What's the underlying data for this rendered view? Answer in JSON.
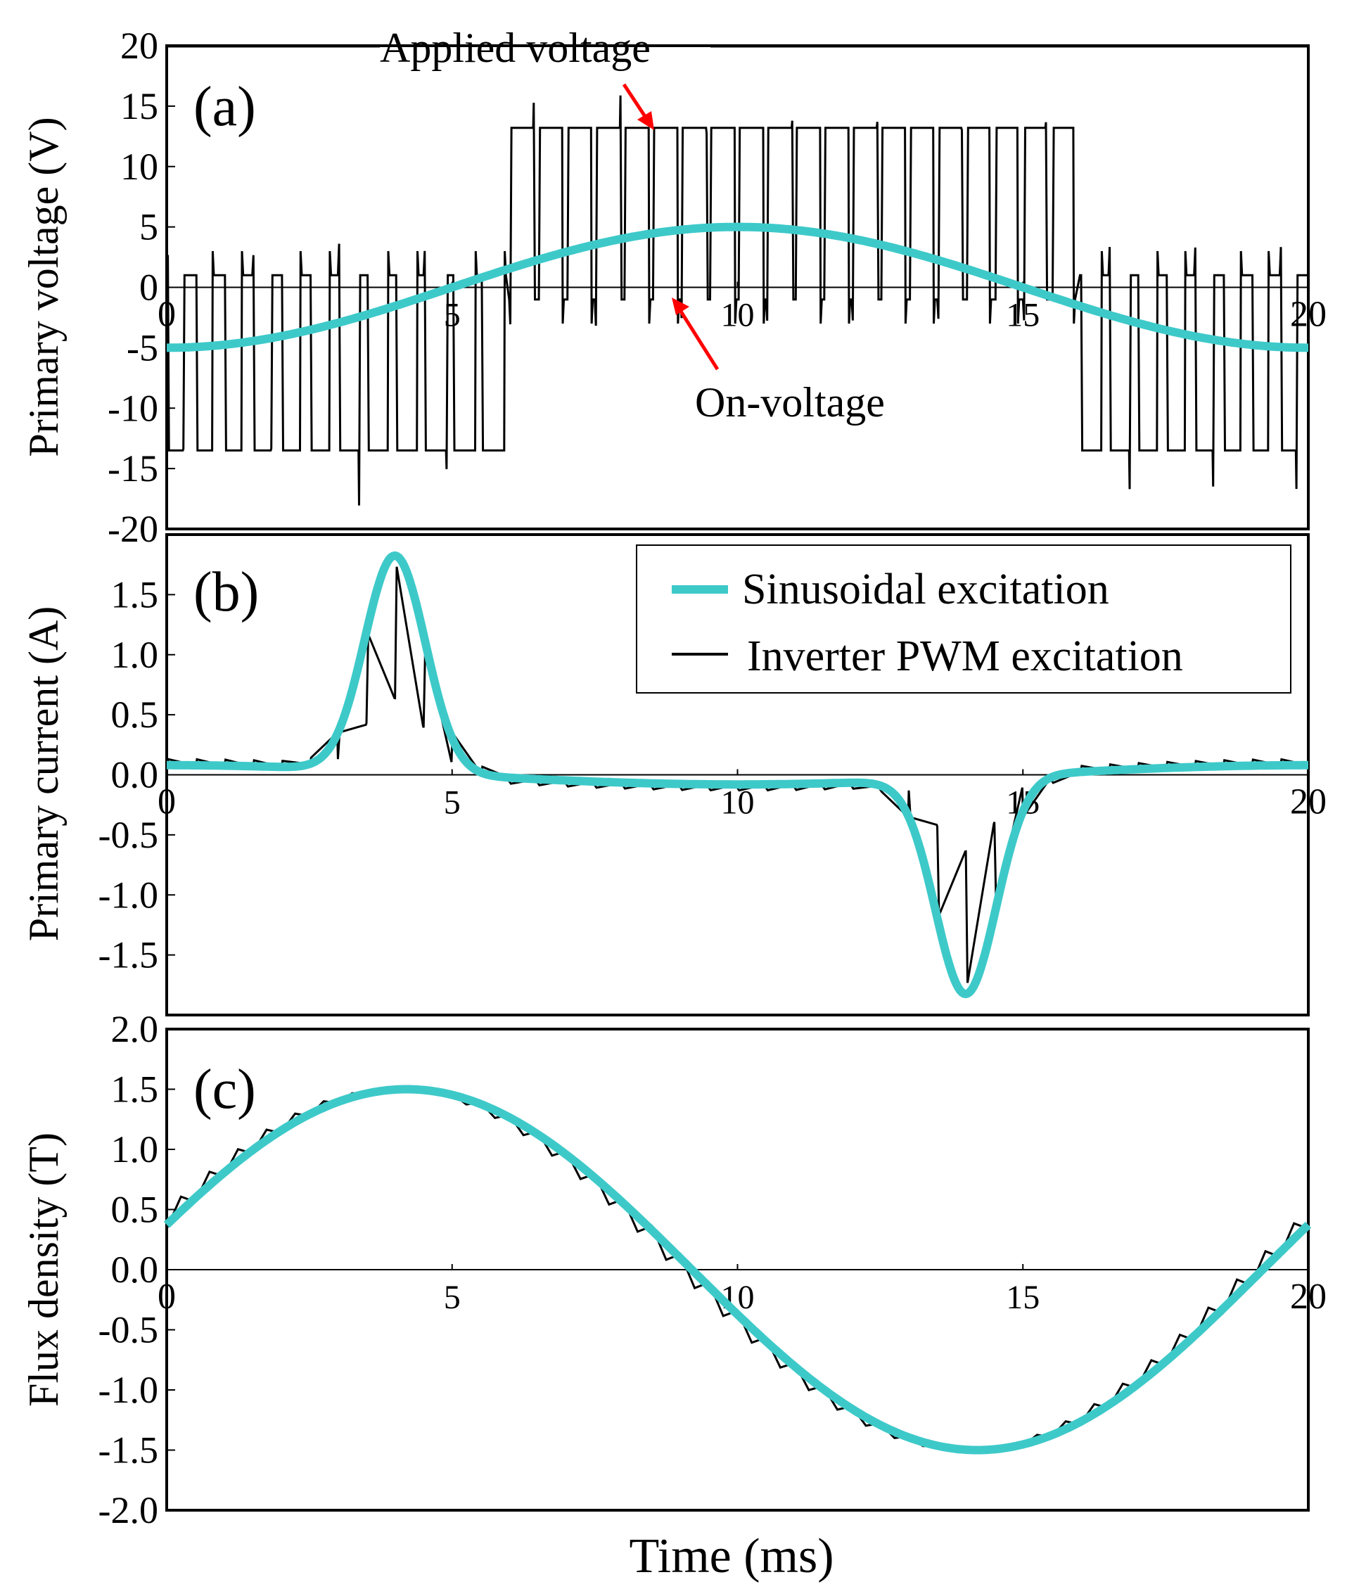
{
  "figure": {
    "xlabel": "Time (ms)",
    "colors": {
      "sinusoidal": "#3ec9c9",
      "pwm": "#000000",
      "annotation": "#ff0000",
      "axis": "#000000"
    }
  },
  "legend": {
    "sinusoidal_label": "Sinusoidal excitation",
    "pwm_label": "Inverter PWM excitation",
    "placement": "top-right of panel (b)"
  },
  "chart_data": [
    {
      "id": "panel-a",
      "type": "line",
      "panel_label": "(a)",
      "ylabel": "Primary voltage (V)",
      "xlabel": "Time (ms)",
      "xlim": [
        0,
        20
      ],
      "ylim": [
        -20,
        20
      ],
      "xticks": [
        0,
        5,
        10,
        15,
        20
      ],
      "yticks": [
        20,
        15,
        10,
        5,
        0,
        -5,
        -10,
        -15,
        -20
      ],
      "annotations": {
        "applied": "Applied voltage",
        "on": "On-voltage"
      },
      "series": [
        {
          "name": "Sinusoidal excitation",
          "kind": "sine",
          "amplitude": -5,
          "period": 20,
          "phase": 0
        },
        {
          "name": "Inverter PWM excitation",
          "kind": "pwm-voltage",
          "carrier_period": 0.5,
          "positive_level": 13.2,
          "negative_level": -13.5,
          "on_voltage": 1.0,
          "negative_half_start": 0,
          "negative_half_end": 5.8,
          "positive_half_start": 5.8,
          "positive_half_end": 15.8,
          "spikes_positive": 16,
          "spikes_negative": -18.5
        }
      ]
    },
    {
      "id": "panel-b",
      "type": "line",
      "panel_label": "(b)",
      "ylabel": "Primary current (A)",
      "xlabel": "Time (ms)",
      "xlim": [
        0,
        20
      ],
      "ylim": [
        -2.0,
        2.0
      ],
      "xticks": [
        0,
        5,
        10,
        15,
        20
      ],
      "yticks": [
        1.5,
        1.0,
        0.5,
        0.0,
        -0.5,
        -1.0,
        -1.5
      ],
      "ytick_labels": [
        "1.5",
        "1.0",
        "0.5",
        "0.0",
        "-0.5",
        "-1.0",
        "-1.5"
      ],
      "series": [
        {
          "name": "Sinusoidal excitation",
          "kind": "current-peak",
          "peak": 1.8,
          "peak_time_pos": 4.0,
          "peak_time_neg": 14.0,
          "width": 0.75,
          "baseline": 0.06
        },
        {
          "name": "Inverter PWM excitation",
          "kind": "current-sawtooth",
          "peak": 1.8,
          "peak_time_pos": 4.0,
          "peak_time_neg": 14.0,
          "carrier_period": 0.5
        }
      ]
    },
    {
      "id": "panel-c",
      "type": "line",
      "panel_label": "(c)",
      "ylabel": "Flux density (T)",
      "xlabel": "Time (ms)",
      "xlim": [
        0,
        20
      ],
      "ylim": [
        -2.0,
        2.0
      ],
      "xticks": [
        0,
        5,
        10,
        15,
        20
      ],
      "yticks": [
        2.0,
        1.5,
        1.0,
        0.5,
        0.0,
        -0.5,
        -1.0,
        -1.5,
        -2.0
      ],
      "ytick_labels": [
        "2.0",
        "1.5",
        "1.0",
        "0.5",
        "0.0",
        "-0.5",
        "-1.0",
        "-1.5",
        "-2.0"
      ],
      "series": [
        {
          "name": "Sinusoidal excitation",
          "kind": "sine",
          "amplitude": 1.5,
          "period": 20,
          "phase_ms": 0.8
        },
        {
          "name": "Inverter PWM excitation",
          "kind": "staircase-sine",
          "amplitude": 1.5,
          "period": 20,
          "phase_ms": 0.8,
          "step_period": 0.5
        }
      ]
    }
  ]
}
